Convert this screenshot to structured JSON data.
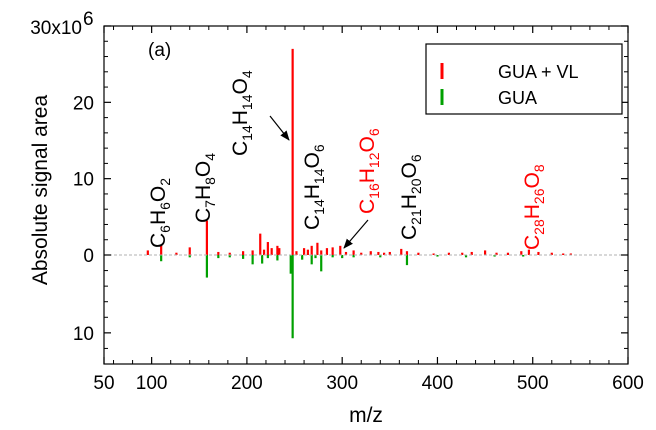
{
  "chart_data": {
    "type": "bar",
    "panel_label": "(a)",
    "xlabel": "m/z",
    "ylabel": "Absolute signal area",
    "xlim": [
      50,
      600
    ],
    "x_ticks": [
      50,
      100,
      200,
      300,
      400,
      500,
      600
    ],
    "y_ticks_positive": [
      "0",
      "10",
      "20",
      "30x10"
    ],
    "y_ticks_negative": [
      "10"
    ],
    "y_exponent": "6",
    "ylim": [
      -14000000,
      30000000
    ],
    "legend_position": "top-right",
    "series": [
      {
        "name": "GUA + VL",
        "color": "#ff0000",
        "direction": "up",
        "x": [
          96,
          110,
          126,
          140,
          158,
          170,
          182,
          196,
          206,
          214,
          218,
          222,
          226,
          232,
          234,
          248,
          252,
          260,
          264,
          268,
          274,
          278,
          284,
          290,
          298,
          304,
          312,
          320,
          330,
          338,
          344,
          350,
          362,
          368,
          380,
          396,
          412,
          426,
          436,
          450,
          462,
          474,
          488,
          496,
          506,
          520,
          532,
          540
        ],
        "values": [
          600000,
          1300000,
          300000,
          1000000,
          4500000,
          400000,
          300000,
          500000,
          600000,
          2800000,
          700000,
          1700000,
          900000,
          1200000,
          900000,
          27000000,
          500000,
          900000,
          700000,
          1200000,
          1600000,
          600000,
          900000,
          1000000,
          1200000,
          400000,
          600000,
          300000,
          500000,
          400000,
          300000,
          400000,
          800000,
          500000,
          300000,
          200000,
          300000,
          300000,
          400000,
          600000,
          300000,
          300000,
          500000,
          700000,
          400000,
          300000,
          200000,
          200000
        ]
      },
      {
        "name": "GUA",
        "color": "#00a000",
        "direction": "down",
        "x": [
          110,
          140,
          158,
          170,
          182,
          196,
          206,
          216,
          222,
          232,
          246,
          248,
          258,
          268,
          272,
          278,
          290,
          300,
          312,
          340,
          368,
          400,
          430,
          460,
          490
        ],
        "values": [
          800000,
          300000,
          2900000,
          400000,
          300000,
          500000,
          1200000,
          1100000,
          400000,
          700000,
          2400000,
          10700000,
          600000,
          1200000,
          400000,
          2100000,
          300000,
          400000,
          300000,
          300000,
          1300000,
          200000,
          300000,
          200000,
          200000
        ]
      }
    ],
    "annotations": [
      {
        "parts": [
          {
            "t": "C"
          },
          {
            "t": "6",
            "sub": true
          },
          {
            "t": "H"
          },
          {
            "t": "6",
            "sub": true
          },
          {
            "t": "O"
          },
          {
            "t": "2",
            "sub": true
          }
        ],
        "x": 110,
        "y": 1300000,
        "color": "#000000"
      },
      {
        "parts": [
          {
            "t": "C"
          },
          {
            "t": "7",
            "sub": true
          },
          {
            "t": "H"
          },
          {
            "t": "8",
            "sub": true
          },
          {
            "t": "O"
          },
          {
            "t": "4",
            "sub": true
          }
        ],
        "x": 158,
        "y": 4500000,
        "color": "#000000"
      },
      {
        "parts": [
          {
            "t": "C"
          },
          {
            "t": "14",
            "sub": true
          },
          {
            "t": "H"
          },
          {
            "t": "14",
            "sub": true
          },
          {
            "t": "O"
          },
          {
            "t": "4",
            "sub": true
          }
        ],
        "x": 248,
        "y": 27000000,
        "color": "#000000"
      },
      {
        "parts": [
          {
            "t": "C"
          },
          {
            "t": "14",
            "sub": true
          },
          {
            "t": "H"
          },
          {
            "t": "14",
            "sub": true
          },
          {
            "t": "O"
          },
          {
            "t": "6",
            "sub": true
          }
        ],
        "x": 278,
        "y": 1600000,
        "color": "#000000"
      },
      {
        "parts": [
          {
            "t": "C"
          },
          {
            "t": "16",
            "sub": true
          },
          {
            "t": "H"
          },
          {
            "t": "12",
            "sub": true
          },
          {
            "t": "O"
          },
          {
            "t": "6",
            "sub": true
          }
        ],
        "x": 290,
        "y": 1000000,
        "color": "#ff0000"
      },
      {
        "parts": [
          {
            "t": "C"
          },
          {
            "t": "21",
            "sub": true
          },
          {
            "t": "H"
          },
          {
            "t": "20",
            "sub": true
          },
          {
            "t": "O"
          },
          {
            "t": "6",
            "sub": true
          }
        ],
        "x": 368,
        "y": 800000,
        "color": "#000000"
      },
      {
        "parts": [
          {
            "t": "C"
          },
          {
            "t": "28",
            "sub": true
          },
          {
            "t": "H"
          },
          {
            "t": "26",
            "sub": true
          },
          {
            "t": "O"
          },
          {
            "t": "8",
            "sub": true
          }
        ],
        "x": 496,
        "y": 700000,
        "color": "#ff0000"
      }
    ]
  }
}
